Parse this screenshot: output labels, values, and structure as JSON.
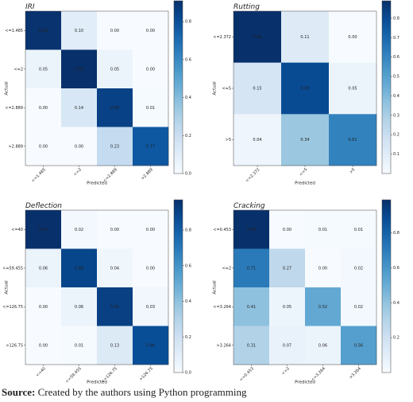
{
  "chart_data": [
    {
      "type": "heatmap",
      "title": "IRI",
      "xlabel": "Predicted",
      "ylabel": "Actual",
      "colormap": "Blues",
      "categories": [
        "<=1.485",
        "<=2",
        "<=2.889",
        ">2.889"
      ],
      "values": [
        [
          0.9,
          0.1,
          0.0,
          0.0
        ],
        [
          0.05,
          0.91,
          0.05,
          0.0
        ],
        [
          0.0,
          0.14,
          0.85,
          0.01
        ],
        [
          0.0,
          0.0,
          0.23,
          0.77
        ]
      ],
      "value_labels": [
        [
          "0.90",
          "0.10",
          "0.00",
          "0.00"
        ],
        [
          "0.05",
          "0.91",
          "0.05",
          "0.00"
        ],
        [
          "0.00",
          "0.14",
          "0.85",
          "0.01"
        ],
        [
          "0.00",
          "0.00",
          "0.23",
          "0.77"
        ]
      ],
      "clim": [
        0,
        0.91
      ],
      "cticks": [
        {
          "value": 0,
          "label": "0.0"
        },
        0.2,
        0.4,
        0.6,
        0.8
      ]
    },
    {
      "type": "heatmap",
      "title": "Rutting",
      "xlabel": "Predicted",
      "ylabel": "Actual",
      "colormap": "Blues",
      "categories": [
        "<=2.372",
        "<=5",
        ">5"
      ],
      "values": [
        [
          0.89,
          0.11,
          0.0
        ],
        [
          0.15,
          0.8,
          0.05
        ],
        [
          0.04,
          0.34,
          0.61
        ]
      ],
      "value_labels": [
        [
          "0.89",
          "0.11",
          "0.00"
        ],
        [
          "0.15",
          "0.80",
          "0.05"
        ],
        [
          "0.04",
          "0.34",
          "0.61"
        ]
      ],
      "clim": [
        0,
        0.89
      ],
      "cticks": [
        0.1,
        0.2,
        0.3,
        0.4,
        0.5,
        0.6,
        0.7,
        0.8
      ]
    },
    {
      "type": "heatmap",
      "title": "Deflection",
      "xlabel": "Predicted",
      "ylabel": "Actual",
      "colormap": "Blues",
      "categories": [
        "<=40",
        "<=59.455",
        "<=126.75",
        ">126.75"
      ],
      "values": [
        [
          0.97,
          0.02,
          0.0,
          0.0
        ],
        [
          0.06,
          0.89,
          0.04,
          0.0
        ],
        [
          0.0,
          0.06,
          0.91,
          0.03
        ],
        [
          0.0,
          0.01,
          0.13,
          0.86
        ]
      ],
      "value_labels": [
        [
          "0.97",
          "0.02",
          "0.00",
          "0.00"
        ],
        [
          "0.06",
          "0.89",
          "0.04",
          "0.00"
        ],
        [
          "0.00",
          "0.06",
          "0.91",
          "0.03"
        ],
        [
          "0.00",
          "0.01",
          "0.13",
          "0.86"
        ]
      ],
      "clim": [
        0,
        0.97
      ],
      "cticks": [
        {
          "value": 0,
          "label": "0.0"
        },
        0.2,
        0.4,
        0.6,
        0.8
      ]
    },
    {
      "type": "heatmap",
      "title": "Cracking",
      "xlabel": "Predicted",
      "ylabel": "Actual",
      "colormap": "Blues",
      "categories": [
        "<=0.453",
        "<=2",
        "<=3.264",
        ">3.264"
      ],
      "values": [
        [
          0.99,
          0.0,
          0.01,
          0.01
        ],
        [
          0.71,
          0.27,
          0.0,
          0.02
        ],
        [
          0.41,
          0.05,
          0.52,
          0.02
        ],
        [
          0.31,
          0.07,
          0.06,
          0.56
        ]
      ],
      "value_labels": [
        [
          "0.99",
          "0.00",
          "0.01",
          "0.01"
        ],
        [
          "0.71",
          "0.27",
          "0.00",
          "0.02"
        ],
        [
          "0.41",
          "0.05",
          "0.52",
          "0.02"
        ],
        [
          "0.31",
          "0.07",
          "0.06",
          "0.56"
        ]
      ],
      "clim": [
        0,
        0.99
      ],
      "cticks": [
        0.2,
        0.4,
        0.6,
        0.8
      ]
    }
  ],
  "caption": {
    "label": "Source:",
    "text": "Created by the authors using Python programming"
  }
}
